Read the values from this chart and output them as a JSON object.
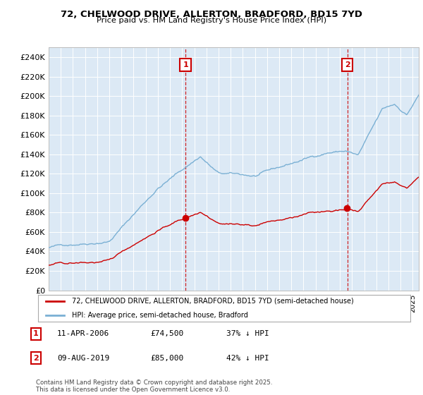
{
  "title": "72, CHELWOOD DRIVE, ALLERTON, BRADFORD, BD15 7YD",
  "subtitle": "Price paid vs. HM Land Registry's House Price Index (HPI)",
  "background_color": "#ffffff",
  "plot_bg_color": "#dce9f5",
  "red_color": "#cc0000",
  "blue_color": "#7ab0d4",
  "annotation1_date": "11-APR-2006",
  "annotation1_price": 74500,
  "annotation1_year": 2006.28,
  "annotation1_hpi": "37% ↓ HPI",
  "annotation2_date": "09-AUG-2019",
  "annotation2_price": 85000,
  "annotation2_year": 2019.61,
  "annotation2_hpi": "42% ↓ HPI",
  "legend_label_red": "72, CHELWOOD DRIVE, ALLERTON, BRADFORD, BD15 7YD (semi-detached house)",
  "legend_label_blue": "HPI: Average price, semi-detached house, Bradford",
  "footer": "Contains HM Land Registry data © Crown copyright and database right 2025.\nThis data is licensed under the Open Government Licence v3.0.",
  "ylim": [
    0,
    250000
  ],
  "ytick_step": 20000,
  "xmin": 1995.0,
  "xmax": 2025.5
}
